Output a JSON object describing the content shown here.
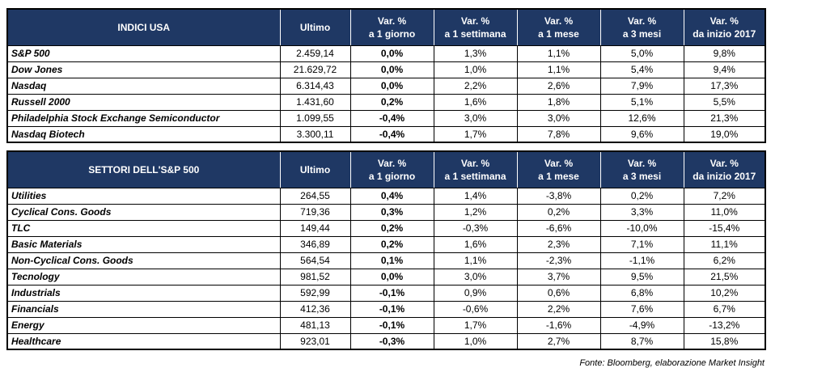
{
  "colors": {
    "header_bg": "#1F3864",
    "header_text": "#FFFFFF",
    "body_text": "#000000"
  },
  "footer": {
    "source": "Fonte: Bloomberg, elaborazione Market Insight"
  },
  "chart_data": [
    {
      "type": "table",
      "title": "INDICI USA",
      "ultimo_label": "Ultimo",
      "columns": [
        "INDICI USA",
        "Ultimo",
        "Var. % a 1 giorno",
        "Var. % a 1 settimana",
        "Var. % a 1 mese",
        "Var. % a 3 mesi",
        "Var. % da inizio 2017"
      ],
      "var_headers": [
        {
          "top": "Var. %",
          "bottom": "a 1 giorno"
        },
        {
          "top": "Var. %",
          "bottom": "a 1 settimana"
        },
        {
          "top": "Var. %",
          "bottom": "a 1 mese"
        },
        {
          "top": "Var. %",
          "bottom": "a 3 mesi"
        },
        {
          "top": "Var. %",
          "bottom": "da inizio 2017"
        }
      ],
      "rows": [
        {
          "name": "S&P 500",
          "ultimo": "2.459,14",
          "values": [
            "0,0%",
            "1,3%",
            "1,1%",
            "5,0%",
            "9,8%"
          ]
        },
        {
          "name": "Dow Jones",
          "ultimo": "21.629,72",
          "values": [
            "0,0%",
            "1,0%",
            "1,1%",
            "5,4%",
            "9,4%"
          ]
        },
        {
          "name": "Nasdaq",
          "ultimo": "6.314,43",
          "values": [
            "0,0%",
            "2,2%",
            "2,6%",
            "7,9%",
            "17,3%"
          ]
        },
        {
          "name": "Russell 2000",
          "ultimo": "1.431,60",
          "values": [
            "0,2%",
            "1,6%",
            "1,8%",
            "5,1%",
            "5,5%"
          ]
        },
        {
          "name": "Philadelphia Stock Exchange Semiconductor",
          "ultimo": "1.099,55",
          "values": [
            "-0,4%",
            "3,0%",
            "3,0%",
            "12,6%",
            "21,3%"
          ]
        },
        {
          "name": "Nasdaq Biotech",
          "ultimo": "3.300,11",
          "values": [
            "-0,4%",
            "1,7%",
            "7,8%",
            "9,6%",
            "19,0%"
          ]
        }
      ]
    },
    {
      "type": "table",
      "title": "SETTORI DELL'S&P 500",
      "ultimo_label": "Ultimo",
      "columns": [
        "SETTORI DELL'S&P 500",
        "Ultimo",
        "Var. % a 1 giorno",
        "Var. % a 1 settimana",
        "Var. % a 1 mese",
        "Var. % a 3 mesi",
        "Var. % da inizio 2017"
      ],
      "var_headers": [
        {
          "top": "Var. %",
          "bottom": "a 1 giorno"
        },
        {
          "top": "Var. %",
          "bottom": "a 1 settimana"
        },
        {
          "top": "Var. %",
          "bottom": "a 1 mese"
        },
        {
          "top": "Var. %",
          "bottom": "a 3 mesi"
        },
        {
          "top": "Var. %",
          "bottom": "da inizio 2017"
        }
      ],
      "rows": [
        {
          "name": "Utilities",
          "ultimo": "264,55",
          "values": [
            "0,4%",
            "1,4%",
            "-3,8%",
            "0,2%",
            "7,2%"
          ]
        },
        {
          "name": "Cyclical Cons. Goods",
          "ultimo": "719,36",
          "values": [
            "0,3%",
            "1,2%",
            "0,2%",
            "3,3%",
            "11,0%"
          ]
        },
        {
          "name": "TLC",
          "ultimo": "149,44",
          "values": [
            "0,2%",
            "-0,3%",
            "-6,6%",
            "-10,0%",
            "-15,4%"
          ]
        },
        {
          "name": "Basic Materials",
          "ultimo": "346,89",
          "values": [
            "0,2%",
            "1,6%",
            "2,3%",
            "7,1%",
            "11,1%"
          ]
        },
        {
          "name": "Non-Cyclical Cons. Goods",
          "ultimo": "564,54",
          "values": [
            "0,1%",
            "1,1%",
            "-2,3%",
            "-1,1%",
            "6,2%"
          ]
        },
        {
          "name": "Tecnology",
          "ultimo": "981,52",
          "values": [
            "0,0%",
            "3,0%",
            "3,7%",
            "9,5%",
            "21,5%"
          ]
        },
        {
          "name": "Industrials",
          "ultimo": "592,99",
          "values": [
            "-0,1%",
            "0,9%",
            "0,6%",
            "6,8%",
            "10,2%"
          ]
        },
        {
          "name": "Financials",
          "ultimo": "412,36",
          "values": [
            "-0,1%",
            "-0,6%",
            "2,2%",
            "7,6%",
            "6,7%"
          ]
        },
        {
          "name": "Energy",
          "ultimo": "481,13",
          "values": [
            "-0,1%",
            "1,7%",
            "-1,6%",
            "-4,9%",
            "-13,2%"
          ]
        },
        {
          "name": "Healthcare",
          "ultimo": "923,01",
          "values": [
            "-0,3%",
            "1,0%",
            "2,7%",
            "8,7%",
            "15,8%"
          ]
        }
      ]
    }
  ]
}
